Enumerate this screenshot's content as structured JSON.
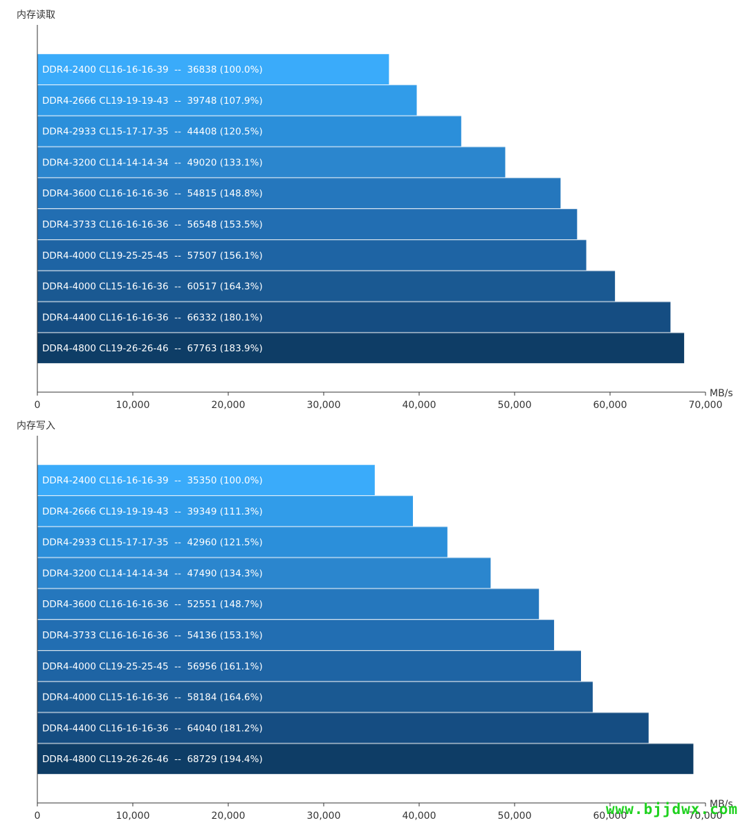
{
  "watermark": "www.bjjdwx.com",
  "colors": [
    "#3aabfa",
    "#319ce9",
    "#2b8fda",
    "#2b86ce",
    "#2577bd",
    "#226eb2",
    "#1e64a4",
    "#1a5992",
    "#154d82",
    "#0e3d66"
  ],
  "chart_data": [
    {
      "type": "bar",
      "orientation": "horizontal",
      "title": "内存读取",
      "unit": "MB/s",
      "xlim": [
        0,
        70000
      ],
      "ticks": [
        "0",
        "10,000",
        "20,000",
        "30,000",
        "40,000",
        "50,000",
        "60,000",
        "70,000"
      ],
      "tick_values": [
        0,
        10000,
        20000,
        30000,
        40000,
        50000,
        60000,
        70000
      ],
      "categories": [
        "DDR4-2400 CL16-16-16-39",
        "DDR4-2666 CL19-19-19-43",
        "DDR4-2933 CL15-17-17-35",
        "DDR4-3200 CL14-14-14-34",
        "DDR4-3600 CL16-16-16-36",
        "DDR4-3733 CL16-16-16-36",
        "DDR4-4000 CL19-25-25-45",
        "DDR4-4000 CL15-16-16-36",
        "DDR4-4400 CL16-16-16-36",
        "DDR4-4800 CL19-26-26-46"
      ],
      "values": [
        36838,
        39748,
        44408,
        49020,
        54815,
        56548,
        57507,
        60517,
        66332,
        67763
      ],
      "labels": [
        "DDR4-2400 CL16-16-16-39  --  36838 (100.0%)",
        "DDR4-2666 CL19-19-19-43  --  39748 (107.9%)",
        "DDR4-2933 CL15-17-17-35  --  44408 (120.5%)",
        "DDR4-3200 CL14-14-14-34  --  49020 (133.1%)",
        "DDR4-3600 CL16-16-16-36  --  54815 (148.8%)",
        "DDR4-3733 CL16-16-16-36  --  56548 (153.5%)",
        "DDR4-4000 CL19-25-25-45  --  57507 (156.1%)",
        "DDR4-4000 CL15-16-16-36  --  60517 (164.3%)",
        "DDR4-4400 CL16-16-16-36  --  66332 (180.1%)",
        "DDR4-4800 CL19-26-26-46  --  67763 (183.9%)"
      ]
    },
    {
      "type": "bar",
      "orientation": "horizontal",
      "title": "内存写入",
      "unit": "MB/s",
      "xlim": [
        0,
        70000
      ],
      "ticks": [
        "0",
        "10,000",
        "20,000",
        "30,000",
        "40,000",
        "50,000",
        "60,000",
        "70,000"
      ],
      "tick_values": [
        0,
        10000,
        20000,
        30000,
        40000,
        50000,
        60000,
        70000
      ],
      "categories": [
        "DDR4-2400 CL16-16-16-39",
        "DDR4-2666 CL19-19-19-43",
        "DDR4-2933 CL15-17-17-35",
        "DDR4-3200 CL14-14-14-34",
        "DDR4-3600 CL16-16-16-36",
        "DDR4-3733 CL16-16-16-36",
        "DDR4-4000 CL19-25-25-45",
        "DDR4-4000 CL15-16-16-36",
        "DDR4-4400 CL16-16-16-36",
        "DDR4-4800 CL19-26-26-46"
      ],
      "values": [
        35350,
        39349,
        42960,
        47490,
        52551,
        54136,
        56956,
        58184,
        64040,
        68729
      ],
      "labels": [
        "DDR4-2400 CL16-16-16-39  --  35350 (100.0%)",
        "DDR4-2666 CL19-19-19-43  --  39349 (111.3%)",
        "DDR4-2933 CL15-17-17-35  --  42960 (121.5%)",
        "DDR4-3200 CL14-14-14-34  --  47490 (134.3%)",
        "DDR4-3600 CL16-16-16-36  --  52551 (148.7%)",
        "DDR4-3733 CL16-16-16-36  --  54136 (153.1%)",
        "DDR4-4000 CL19-25-25-45  --  56956 (161.1%)",
        "DDR4-4000 CL15-16-16-36  --  58184 (164.6%)",
        "DDR4-4400 CL16-16-16-36  --  64040 (181.2%)",
        "DDR4-4800 CL19-26-26-46  --  68729 (194.4%)"
      ]
    }
  ]
}
